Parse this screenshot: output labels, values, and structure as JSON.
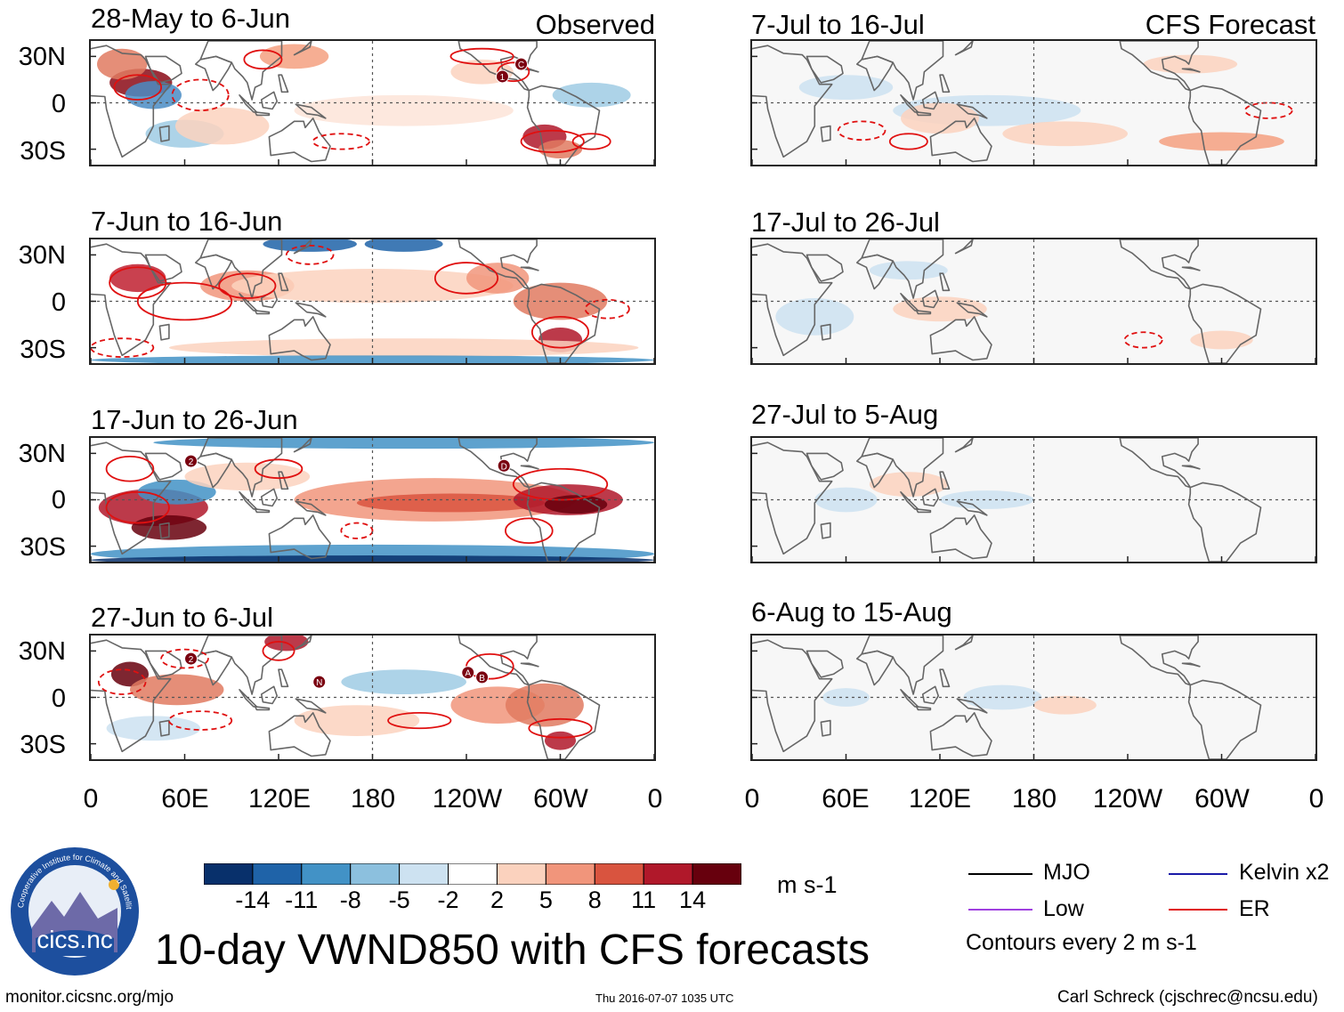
{
  "figure": {
    "title": "10-day VWND850 with CFS forecasts",
    "units": "m s-1",
    "source_url": "monitor.cicsnc.org/mjo",
    "timestamp": "Thu 2016-07-07 1035 UTC",
    "author": "Carl Schreck (cjschrec@ncsu.edu)",
    "contour_note": "Contours every 2 m s-1"
  },
  "columns": {
    "observed_label": "Observed",
    "forecast_label": "CFS Forecast"
  },
  "panels": {
    "observed": [
      {
        "period": "28-May to 6-Jun",
        "markers": [
          "1",
          "C"
        ]
      },
      {
        "period": "7-Jun to 16-Jun",
        "markers": []
      },
      {
        "period": "17-Jun to 26-Jun",
        "markers": [
          "2",
          "D"
        ]
      },
      {
        "period": "27-Jun to 6-Jul",
        "markers": [
          "2",
          "N",
          "A",
          "B"
        ]
      }
    ],
    "forecast": [
      {
        "period": "7-Jul to 16-Jul"
      },
      {
        "period": "17-Jul to 26-Jul"
      },
      {
        "period": "27-Jul to 5-Aug"
      },
      {
        "period": "6-Aug to 15-Aug"
      }
    ]
  },
  "axes": {
    "lat_ticks": [
      "30N",
      "0",
      "30S"
    ],
    "lon_ticks": [
      "0",
      "60E",
      "120E",
      "180",
      "120W",
      "60W",
      "0"
    ]
  },
  "colorbar": {
    "levels": [
      "-14",
      "-11",
      "-8",
      "-5",
      "-2",
      "2",
      "5",
      "8",
      "11",
      "14"
    ],
    "colors": [
      "#08306b",
      "#1f63a8",
      "#4292c6",
      "#8cc0de",
      "#cde2f1",
      "#ffffff",
      "#fbd2be",
      "#f1957b",
      "#d9543f",
      "#b0182a",
      "#67000d"
    ]
  },
  "legend": [
    {
      "label": "MJO",
      "color": "#000000"
    },
    {
      "label": "Kelvin x2",
      "color": "#1a1aa8"
    },
    {
      "label": "Low",
      "color": "#a040e0"
    },
    {
      "label": "ER",
      "color": "#e01010"
    }
  ],
  "logo": {
    "ring_text": "Cooperative Institute for Climate and Satellites",
    "name": "cics.nc"
  }
}
